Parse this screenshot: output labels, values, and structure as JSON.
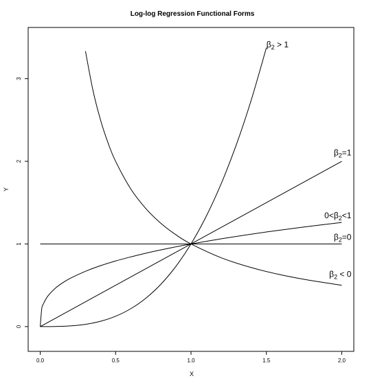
{
  "chart_data": {
    "type": "line",
    "title": "Log-log Regression Functional Forms",
    "xlabel": "X",
    "ylabel": "Y",
    "xlim": [
      -0.08,
      2.08
    ],
    "ylim": [
      -0.3,
      3.62
    ],
    "x_ticks": [
      0.0,
      0.5,
      1.0,
      1.5,
      2.0
    ],
    "x_tick_labels": [
      "0.0",
      "0.5",
      "1.0",
      "1.5",
      "2.0"
    ],
    "y_ticks": [
      0,
      1,
      2,
      3
    ],
    "y_tick_labels": [
      "0",
      "1",
      "2",
      "3"
    ],
    "grid": false,
    "series": [
      {
        "label_parts": [
          {
            "t": "β",
            "sub": false
          },
          {
            "t": "2",
            "sub": true
          },
          {
            "t": " > 1",
            "sub": false
          }
        ],
        "label_anchor": [
          1.5,
          3.38
        ],
        "x": [
          0,
          0.1,
          0.2,
          0.3,
          0.4,
          0.5,
          0.6,
          0.7,
          0.8,
          0.9,
          1.0,
          1.1,
          1.2,
          1.3,
          1.4,
          1.5
        ],
        "y": [
          0,
          0.001,
          0.008,
          0.027,
          0.064,
          0.125,
          0.216,
          0.343,
          0.512,
          0.729,
          1.0,
          1.331,
          1.728,
          2.197,
          2.744,
          3.375
        ]
      },
      {
        "label_parts": [
          {
            "t": "β",
            "sub": false
          },
          {
            "t": "2",
            "sub": true
          },
          {
            "t": "=1",
            "sub": false
          }
        ],
        "label_anchor": [
          2.0,
          2.07
        ],
        "x": [
          0,
          2.0
        ],
        "y": [
          0,
          2.0
        ]
      },
      {
        "label_parts": [
          {
            "t": "0<β",
            "sub": false
          },
          {
            "t": "2",
            "sub": true
          },
          {
            "t": "<1",
            "sub": false
          }
        ],
        "label_anchor": [
          2.0,
          1.31
        ],
        "x": [
          0,
          0.01,
          0.02,
          0.05,
          0.1,
          0.15,
          0.2,
          0.3,
          0.4,
          0.5,
          0.6,
          0.7,
          0.8,
          0.9,
          1.0,
          1.25,
          1.5,
          1.75,
          2.0
        ],
        "y": [
          0,
          0.215,
          0.271,
          0.368,
          0.464,
          0.531,
          0.585,
          0.669,
          0.737,
          0.794,
          0.843,
          0.888,
          0.928,
          0.965,
          1.0,
          1.077,
          1.145,
          1.205,
          1.26
        ]
      },
      {
        "label_parts": [
          {
            "t": "β",
            "sub": false
          },
          {
            "t": "2",
            "sub": true
          },
          {
            "t": "=0",
            "sub": false
          }
        ],
        "label_anchor": [
          2.0,
          1.05
        ],
        "x": [
          0,
          2.0
        ],
        "y": [
          1.0,
          1.0
        ]
      },
      {
        "label_parts": [
          {
            "t": "β",
            "sub": false
          },
          {
            "t": "2",
            "sub": true
          },
          {
            "t": " < 0",
            "sub": false
          }
        ],
        "label_anchor": [
          2.0,
          0.6
        ],
        "x": [
          0.3,
          0.35,
          0.4,
          0.45,
          0.5,
          0.6,
          0.7,
          0.8,
          0.9,
          1.0,
          1.2,
          1.4,
          1.6,
          1.8,
          2.0
        ],
        "y": [
          3.333,
          2.857,
          2.5,
          2.222,
          2.0,
          1.667,
          1.429,
          1.25,
          1.111,
          1.0,
          0.833,
          0.714,
          0.625,
          0.556,
          0.5
        ]
      }
    ]
  }
}
